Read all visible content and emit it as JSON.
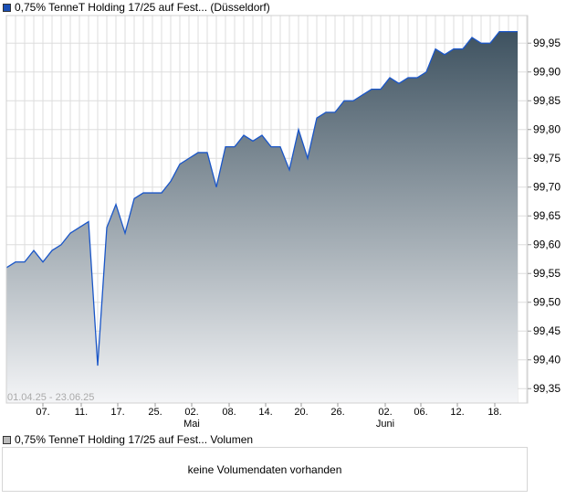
{
  "legend_main": {
    "label": "0,75% TenneT Holding 17/25 auf Fest... (Düsseldorf)",
    "color": "#1a4fb5"
  },
  "legend_volume": {
    "label": "0,75% TenneT Holding 17/25 auf Fest... Volumen",
    "color": "#bbbbbb"
  },
  "volume_message": "keine Volumendaten vorhanden",
  "chart_data": {
    "type": "area",
    "date_range_label": "01.04.25 - 23.06.25",
    "ylim": [
      99.325,
      99.998
    ],
    "yticks": [
      99.35,
      99.4,
      99.45,
      99.5,
      99.55,
      99.6,
      99.65,
      99.7,
      99.75,
      99.8,
      99.85,
      99.9,
      99.95
    ],
    "ytick_labels": [
      "99,35",
      "99,40",
      "99,45",
      "99,50",
      "99,55",
      "99,60",
      "99,65",
      "99,70",
      "99,75",
      "99,80",
      "99,85",
      "99,90",
      "99,95"
    ],
    "xticks": [
      {
        "index": 4,
        "label": "07.",
        "month": ""
      },
      {
        "index": 8.2,
        "label": "11.",
        "month": ""
      },
      {
        "index": 12.2,
        "label": "17.",
        "month": ""
      },
      {
        "index": 16.3,
        "label": "25.",
        "month": ""
      },
      {
        "index": 20.3,
        "label": "02.",
        "month": "Mai"
      },
      {
        "index": 24.4,
        "label": "08.",
        "month": ""
      },
      {
        "index": 28.4,
        "label": "14.",
        "month": ""
      },
      {
        "index": 32.3,
        "label": "20.",
        "month": ""
      },
      {
        "index": 36.3,
        "label": "26.",
        "month": ""
      },
      {
        "index": 41.5,
        "label": "02.",
        "month": "Juni"
      },
      {
        "index": 45.4,
        "label": "06.",
        "month": ""
      },
      {
        "index": 49.4,
        "label": "12.",
        "month": ""
      },
      {
        "index": 53.5,
        "label": "18.",
        "month": ""
      }
    ],
    "values": [
      99.56,
      99.57,
      99.57,
      99.59,
      99.57,
      99.59,
      99.6,
      99.62,
      99.63,
      99.64,
      99.39,
      99.63,
      99.67,
      99.62,
      99.68,
      99.69,
      99.69,
      99.69,
      99.71,
      99.74,
      99.75,
      99.76,
      99.76,
      99.7,
      99.77,
      99.77,
      99.79,
      99.78,
      99.79,
      99.77,
      99.77,
      99.73,
      99.8,
      99.75,
      99.82,
      99.83,
      99.83,
      99.85,
      99.85,
      99.86,
      99.87,
      99.87,
      99.89,
      99.88,
      99.89,
      99.89,
      99.9,
      99.94,
      99.93,
      99.94,
      99.94,
      99.96,
      99.95,
      99.95,
      99.97,
      99.97,
      99.97
    ],
    "line_color": "#1a56c8",
    "fill_top": "#3e5260",
    "fill_bottom": "#f4f5f7",
    "grid": true
  }
}
